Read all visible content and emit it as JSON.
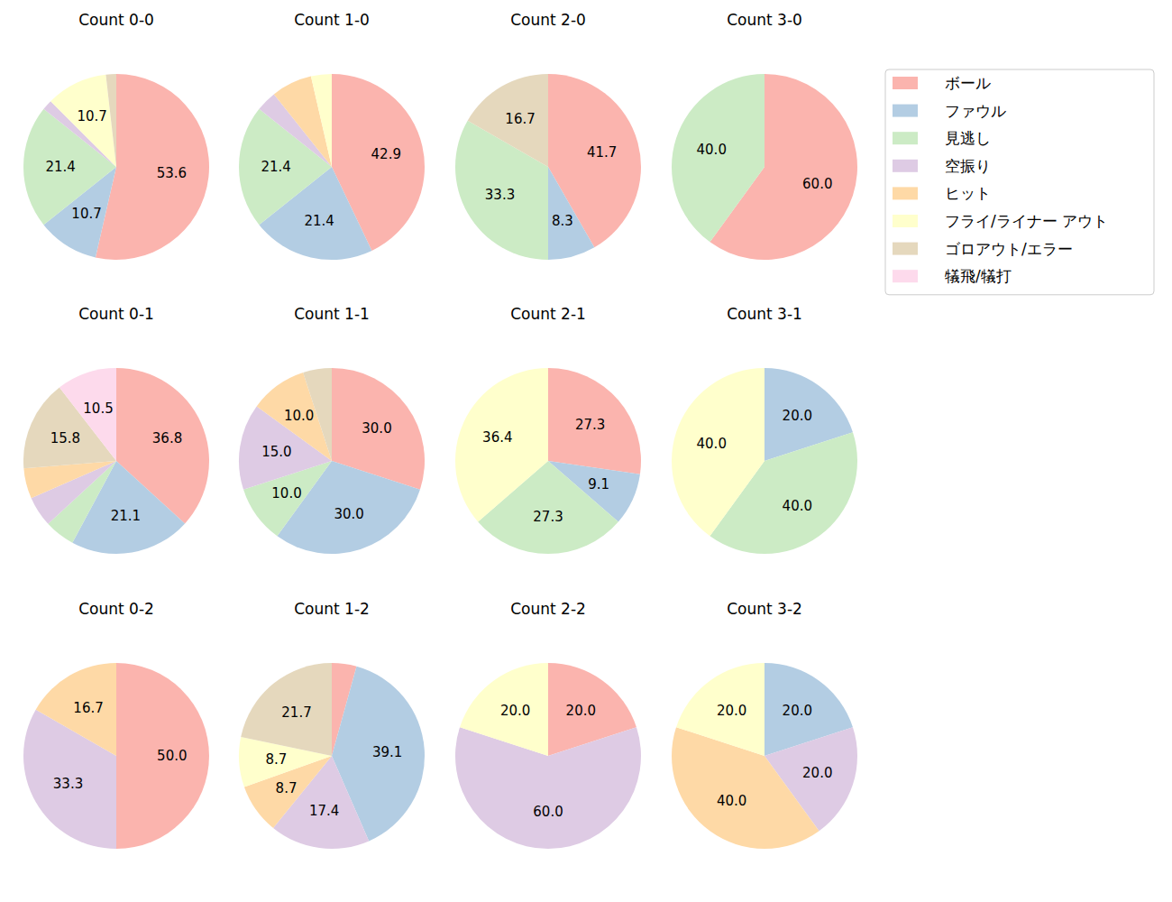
{
  "chart_data": [
    {
      "type": "pie",
      "title": "Count 0-0",
      "legend": "right",
      "data_labels": true,
      "categories": [
        "ボール",
        "ファウル",
        "見逃し",
        "空振り",
        "ヒット",
        "フライ/ライナー アウト",
        "ゴロアウト/エラー",
        "犠飛/犠打"
      ],
      "colors": [
        "#fbb4ae",
        "#b3cde3",
        "#ccebc5",
        "#decbe4",
        "#fed9a6",
        "#ffffcc",
        "#e5d8bd",
        "#fddaec"
      ],
      "values": [
        53.6,
        10.7,
        21.4,
        1.8,
        0,
        10.7,
        1.8,
        0
      ],
      "value_labels": [
        "53.6",
        "10.7",
        "21.4",
        null,
        null,
        "10.7",
        null,
        null
      ]
    },
    {
      "type": "pie",
      "title": "Count 1-0",
      "data_labels": true,
      "categories": [
        "ボール",
        "ファウル",
        "見逃し",
        "空振り",
        "ヒット",
        "フライ/ライナー アウト",
        "ゴロアウト/エラー",
        "犠飛/犠打"
      ],
      "colors": [
        "#fbb4ae",
        "#b3cde3",
        "#ccebc5",
        "#decbe4",
        "#fed9a6",
        "#ffffcc",
        "#e5d8bd",
        "#fddaec"
      ],
      "values": [
        42.9,
        21.4,
        21.4,
        3.6,
        7.1,
        3.6,
        0,
        0
      ],
      "value_labels": [
        "42.9",
        "21.4",
        "21.4",
        null,
        null,
        null,
        null,
        null
      ]
    },
    {
      "type": "pie",
      "title": "Count 2-0",
      "data_labels": true,
      "categories": [
        "ボール",
        "ファウル",
        "見逃し",
        "空振り",
        "ヒット",
        "フライ/ライナー アウト",
        "ゴロアウト/エラー",
        "犠飛/犠打"
      ],
      "colors": [
        "#fbb4ae",
        "#b3cde3",
        "#ccebc5",
        "#decbe4",
        "#fed9a6",
        "#ffffcc",
        "#e5d8bd",
        "#fddaec"
      ],
      "values": [
        41.7,
        8.3,
        33.3,
        0,
        0,
        0,
        16.7,
        0
      ],
      "value_labels": [
        "41.7",
        "8.3",
        "33.3",
        null,
        null,
        null,
        "16.7",
        null
      ]
    },
    {
      "type": "pie",
      "title": "Count 3-0",
      "data_labels": true,
      "categories": [
        "ボール",
        "ファウル",
        "見逃し",
        "空振り",
        "ヒット",
        "フライ/ライナー アウト",
        "ゴロアウト/エラー",
        "犠飛/犠打"
      ],
      "colors": [
        "#fbb4ae",
        "#b3cde3",
        "#ccebc5",
        "#decbe4",
        "#fed9a6",
        "#ffffcc",
        "#e5d8bd",
        "#fddaec"
      ],
      "values": [
        60.0,
        0,
        40.0,
        0,
        0,
        0,
        0,
        0
      ],
      "value_labels": [
        "60.0",
        null,
        "40.0",
        null,
        null,
        null,
        null,
        null
      ]
    },
    {
      "type": "pie",
      "title": "Count 0-1",
      "data_labels": true,
      "categories": [
        "ボール",
        "ファウル",
        "見逃し",
        "空振り",
        "ヒット",
        "フライ/ライナー アウト",
        "ゴロアウト/エラー",
        "犠飛/犠打"
      ],
      "colors": [
        "#fbb4ae",
        "#b3cde3",
        "#ccebc5",
        "#decbe4",
        "#fed9a6",
        "#ffffcc",
        "#e5d8bd",
        "#fddaec"
      ],
      "values": [
        36.8,
        21.1,
        5.3,
        5.3,
        5.3,
        0,
        15.8,
        10.5
      ],
      "value_labels": [
        "36.8",
        "21.1",
        null,
        null,
        null,
        null,
        "15.8",
        "10.5"
      ]
    },
    {
      "type": "pie",
      "title": "Count 1-1",
      "data_labels": true,
      "categories": [
        "ボール",
        "ファウル",
        "見逃し",
        "空振り",
        "ヒット",
        "フライ/ライナー アウト",
        "ゴロアウト/エラー",
        "犠飛/犠打"
      ],
      "colors": [
        "#fbb4ae",
        "#b3cde3",
        "#ccebc5",
        "#decbe4",
        "#fed9a6",
        "#ffffcc",
        "#e5d8bd",
        "#fddaec"
      ],
      "values": [
        30.0,
        30.0,
        10.0,
        15.0,
        10.0,
        0,
        5.0,
        0
      ],
      "value_labels": [
        "30.0",
        "30.0",
        "10.0",
        "15.0",
        "10.0",
        null,
        null,
        null
      ]
    },
    {
      "type": "pie",
      "title": "Count 2-1",
      "data_labels": true,
      "categories": [
        "ボール",
        "ファウル",
        "見逃し",
        "空振り",
        "ヒット",
        "フライ/ライナー アウト",
        "ゴロアウト/エラー",
        "犠飛/犠打"
      ],
      "colors": [
        "#fbb4ae",
        "#b3cde3",
        "#ccebc5",
        "#decbe4",
        "#fed9a6",
        "#ffffcc",
        "#e5d8bd",
        "#fddaec"
      ],
      "values": [
        27.3,
        9.1,
        27.3,
        0,
        0,
        36.4,
        0,
        0
      ],
      "value_labels": [
        "27.3",
        "9.1",
        "27.3",
        null,
        null,
        "36.4",
        null,
        null
      ]
    },
    {
      "type": "pie",
      "title": "Count 3-1",
      "data_labels": true,
      "categories": [
        "ボール",
        "ファウル",
        "見逃し",
        "空振り",
        "ヒット",
        "フライ/ライナー アウト",
        "ゴロアウト/エラー",
        "犠飛/犠打"
      ],
      "colors": [
        "#fbb4ae",
        "#b3cde3",
        "#ccebc5",
        "#decbe4",
        "#fed9a6",
        "#ffffcc",
        "#e5d8bd",
        "#fddaec"
      ],
      "values": [
        0,
        20.0,
        40.0,
        0,
        0,
        40.0,
        0,
        0
      ],
      "value_labels": [
        null,
        "20.0",
        "40.0",
        null,
        null,
        "40.0",
        null,
        null
      ]
    },
    {
      "type": "pie",
      "title": "Count 0-2",
      "data_labels": true,
      "categories": [
        "ボール",
        "ファウル",
        "見逃し",
        "空振り",
        "ヒット",
        "フライ/ライナー アウト",
        "ゴロアウト/エラー",
        "犠飛/犠打"
      ],
      "colors": [
        "#fbb4ae",
        "#b3cde3",
        "#ccebc5",
        "#decbe4",
        "#fed9a6",
        "#ffffcc",
        "#e5d8bd",
        "#fddaec"
      ],
      "values": [
        50.0,
        0,
        0,
        33.3,
        16.7,
        0,
        0,
        0
      ],
      "value_labels": [
        "50.0",
        null,
        null,
        "33.3",
        "16.7",
        null,
        null,
        null
      ]
    },
    {
      "type": "pie",
      "title": "Count 1-2",
      "data_labels": true,
      "categories": [
        "ボール",
        "ファウル",
        "見逃し",
        "空振り",
        "ヒット",
        "フライ/ライナー アウト",
        "ゴロアウト/エラー",
        "犠飛/犠打"
      ],
      "colors": [
        "#fbb4ae",
        "#b3cde3",
        "#ccebc5",
        "#decbe4",
        "#fed9a6",
        "#ffffcc",
        "#e5d8bd",
        "#fddaec"
      ],
      "values": [
        4.3,
        39.1,
        0,
        17.4,
        8.7,
        8.7,
        21.7,
        0
      ],
      "value_labels": [
        null,
        "39.1",
        null,
        "17.4",
        "8.7",
        "8.7",
        "21.7",
        null
      ]
    },
    {
      "type": "pie",
      "title": "Count 2-2",
      "data_labels": true,
      "categories": [
        "ボール",
        "ファウル",
        "見逃し",
        "空振り",
        "ヒット",
        "フライ/ライナー アウト",
        "ゴロアウト/エラー",
        "犠飛/犠打"
      ],
      "colors": [
        "#fbb4ae",
        "#b3cde3",
        "#ccebc5",
        "#decbe4",
        "#fed9a6",
        "#ffffcc",
        "#e5d8bd",
        "#fddaec"
      ],
      "values": [
        20.0,
        0,
        0,
        60.0,
        0,
        20.0,
        0,
        0
      ],
      "value_labels": [
        "20.0",
        null,
        null,
        "60.0",
        null,
        "20.0",
        null,
        null
      ]
    },
    {
      "type": "pie",
      "title": "Count 3-2",
      "data_labels": true,
      "categories": [
        "ボール",
        "ファウル",
        "見逃し",
        "空振り",
        "ヒット",
        "フライ/ライナー アウト",
        "ゴロアウト/エラー",
        "犠飛/犠打"
      ],
      "colors": [
        "#fbb4ae",
        "#b3cde3",
        "#ccebc5",
        "#decbe4",
        "#fed9a6",
        "#ffffcc",
        "#e5d8bd",
        "#fddaec"
      ],
      "values": [
        0,
        20.0,
        0,
        20.0,
        40.0,
        20.0,
        0,
        0
      ],
      "value_labels": [
        null,
        "20.0",
        null,
        "20.0",
        "40.0",
        "20.0",
        null,
        null
      ]
    }
  ]
}
